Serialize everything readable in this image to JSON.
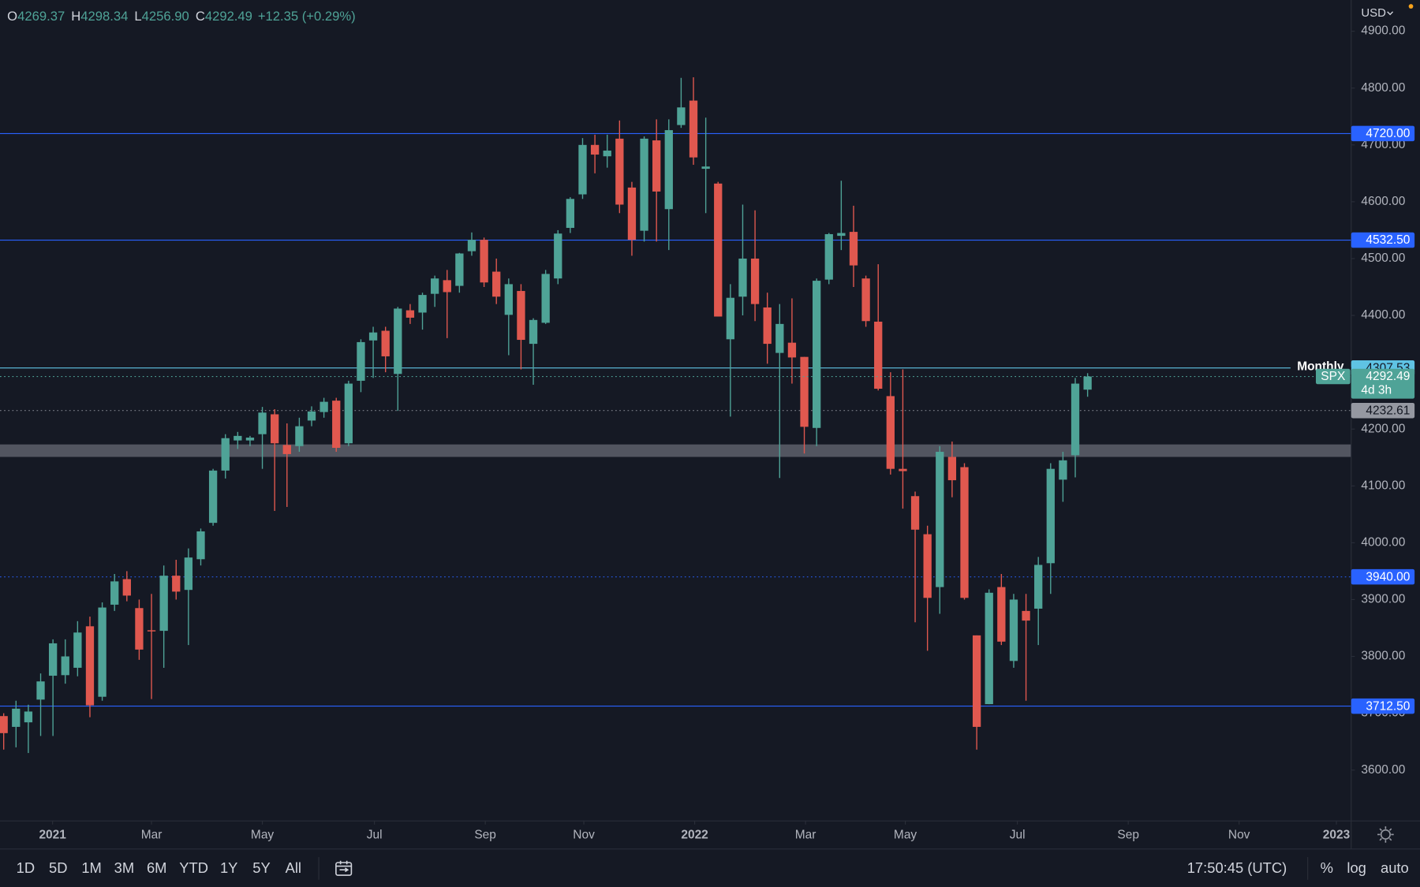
{
  "chart_data": {
    "type": "candlestick",
    "symbol": "SPX",
    "currency": "USD",
    "countdown": "4d 3h",
    "header": [
      {
        "key": "O",
        "value": "4269.37"
      },
      {
        "key": "H",
        "value": "4298.34"
      },
      {
        "key": "L",
        "value": "4256.90"
      },
      {
        "key": "C",
        "value": "4292.49"
      }
    ],
    "change": "+12.35 (+0.29%)",
    "up_color": "#4fa397",
    "down_color": "#e0584f",
    "open": [
      3695,
      3676,
      3684,
      3724,
      3766,
      3767,
      3780,
      3853,
      3729,
      3891,
      3936,
      3885,
      3846,
      3845,
      3942,
      3917,
      3971,
      4035,
      4127,
      4180,
      4180,
      4191,
      4226,
      4172,
      4170,
      4215,
      4230,
      4250,
      4175,
      4285,
      4356,
      4373,
      4297,
      4409,
      4405,
      4438,
      4462,
      4452,
      4513,
      4533,
      4477,
      4401,
      4443,
      4350,
      4387,
      4465,
      4554,
      4613,
      4700,
      4680,
      4711,
      4625,
      4549,
      4708,
      4587,
      4735,
      4778,
      4658,
      4632,
      4358,
      4433,
      4500,
      4414,
      4334,
      4352,
      4327,
      4202,
      4463,
      4540,
      4547,
      4465,
      4389,
      4258,
      4130,
      4082,
      4015,
      3922,
      4151,
      4133,
      3837,
      3716,
      3922,
      3792,
      3880,
      3884,
      3964,
      4111,
      4154,
      4269.37
    ],
    "high": [
      3700,
      3722,
      3715,
      3770,
      3830,
      3830,
      3862,
      3870,
      3895,
      3945,
      3950,
      3900,
      3910,
      3960,
      3970,
      3990,
      4025,
      4130,
      4191,
      4195,
      4188,
      4239,
      4235,
      4210,
      4220,
      4240,
      4255,
      4255,
      4285,
      4358,
      4380,
      4380,
      4415,
      4420,
      4440,
      4470,
      4480,
      4510,
      4546,
      4537,
      4500,
      4465,
      4455,
      4395,
      4480,
      4550,
      4608,
      4712,
      4718,
      4718,
      4743,
      4635,
      4715,
      4745,
      4745,
      4818,
      4819,
      4748,
      4635,
      4455,
      4595,
      4585,
      4440,
      4420,
      4430,
      4327,
      4465,
      4545,
      4637,
      4593,
      4470,
      4490,
      4300,
      4305,
      4090,
      4030,
      4170,
      4178,
      4140,
      3837,
      3918,
      3945,
      3910,
      3910,
      3975,
      4140,
      4160,
      4290,
      4298.34
    ],
    "low": [
      3636,
      3640,
      3630,
      3660,
      3660,
      3752,
      3765,
      3693,
      3722,
      3880,
      3897,
      3794,
      3725,
      3780,
      3900,
      3820,
      3960,
      4030,
      4113,
      4165,
      4170,
      4130,
      4056,
      4063,
      4160,
      4205,
      4220,
      4160,
      4170,
      4265,
      4290,
      4300,
      4232,
      4385,
      4375,
      4415,
      4360,
      4440,
      4505,
      4450,
      4420,
      4330,
      4305,
      4278,
      4385,
      4455,
      4545,
      4605,
      4650,
      4660,
      4580,
      4505,
      4530,
      4530,
      4515,
      4730,
      4665,
      4580,
      4398,
      4222,
      4400,
      4390,
      4315,
      4114,
      4280,
      4157,
      4170,
      4455,
      4515,
      4450,
      4380,
      4268,
      4120,
      4060,
      3860,
      3810,
      3875,
      4080,
      3900,
      3636,
      3716,
      3820,
      3780,
      3722,
      3820,
      3910,
      4072,
      4115,
      4256.9
    ],
    "close": [
      3665,
      3708,
      3703,
      3756,
      3823,
      3800,
      3842,
      3714,
      3886,
      3932,
      3907,
      3812,
      3844,
      3942,
      3914,
      3974,
      4020,
      4127,
      4184,
      4188,
      4185,
      4229,
      4175,
      4156,
      4205,
      4231,
      4248,
      4167,
      4280,
      4353,
      4370,
      4328,
      4412,
      4396,
      4436,
      4465,
      4441,
      4509,
      4533,
      4458,
      4433,
      4455,
      4357,
      4392,
      4473,
      4544,
      4605,
      4700,
      4683,
      4690,
      4595,
      4533,
      4711,
      4618,
      4726,
      4766,
      4678,
      4662,
      4398,
      4431,
      4500,
      4420,
      4350,
      4385,
      4326,
      4204,
      4461,
      4543,
      4545,
      4488,
      4390,
      4271,
      4130,
      4126,
      4023,
      3903,
      4160,
      4110,
      3903,
      3676,
      3912,
      3826,
      3900,
      3863,
      3961,
      4130,
      4145,
      4280,
      4292.49
    ],
    "xlim": [
      -0.3,
      109.4
    ],
    "xticks": [
      {
        "value": 3.97,
        "label": "2021"
      },
      {
        "value": 12.0,
        "label": "Mar"
      },
      {
        "value": 21.0,
        "label": "May"
      },
      {
        "value": 30.1,
        "label": "Jul"
      },
      {
        "value": 39.1,
        "label": "Sep"
      },
      {
        "value": 47.1,
        "label": "Nov"
      },
      {
        "value": 56.1,
        "label": "2022"
      },
      {
        "value": 65.1,
        "label": "Mar"
      },
      {
        "value": 73.2,
        "label": "May"
      },
      {
        "value": 82.3,
        "label": "Jul"
      },
      {
        "value": 91.3,
        "label": "Sep"
      },
      {
        "value": 100.3,
        "label": "Nov"
      },
      {
        "value": 108.2,
        "label": "2023"
      }
    ],
    "ylim": [
      3510.5,
      4955
    ],
    "yticks": [
      {
        "value": 3600,
        "label": "3600.00"
      },
      {
        "value": 3700,
        "label": "3700.00"
      },
      {
        "value": 3800,
        "label": "3800.00"
      },
      {
        "value": 3900,
        "label": "3900.00"
      },
      {
        "value": 4000,
        "label": "4000.00"
      },
      {
        "value": 4100,
        "label": "4100.00"
      },
      {
        "value": 4200,
        "label": "4200.00"
      },
      {
        "value": 4300,
        "label": "4300.00"
      },
      {
        "value": 4400,
        "label": "4400.00"
      },
      {
        "value": 4500,
        "label": "4500.00"
      },
      {
        "value": 4600,
        "label": "4600.00"
      },
      {
        "value": 4700,
        "label": "4700.00"
      },
      {
        "value": 4800,
        "label": "4800.00"
      },
      {
        "value": 4900,
        "label": "4900.00"
      }
    ],
    "zones": [
      {
        "from": 4151,
        "to": 4173,
        "color": "#5d606b"
      }
    ],
    "levels": [
      {
        "value": 4720,
        "label": "4720.00",
        "color": "#2962ff",
        "style": "solid",
        "text_color": "#ffffff"
      },
      {
        "value": 4532.5,
        "label": "4532.50",
        "color": "#2962ff",
        "style": "solid",
        "text_color": "#ffffff"
      },
      {
        "value": 4307.53,
        "label": "4307.53",
        "name": "Monthly",
        "color": "#5fc3e4",
        "style": "solid",
        "text_color": "#131722"
      },
      {
        "value": 4232.61,
        "label": "4232.61",
        "color": "#9598a1",
        "style": "dotted",
        "text_color": "#131722"
      },
      {
        "value": 3940,
        "label": "3940.00",
        "color": "#2962ff",
        "style": "dotted",
        "text_color": "#ffffff"
      },
      {
        "value": 3712.5,
        "label": "3712.50",
        "color": "#2962ff",
        "style": "solid",
        "text_color": "#ffffff"
      }
    ],
    "toolbar": {
      "ranges": [
        "1D",
        "5D",
        "1M",
        "3M",
        "6M",
        "YTD",
        "1Y",
        "5Y",
        "All"
      ],
      "clock": "17:50:45 (UTC)",
      "options": [
        "%",
        "log",
        "auto"
      ]
    }
  }
}
